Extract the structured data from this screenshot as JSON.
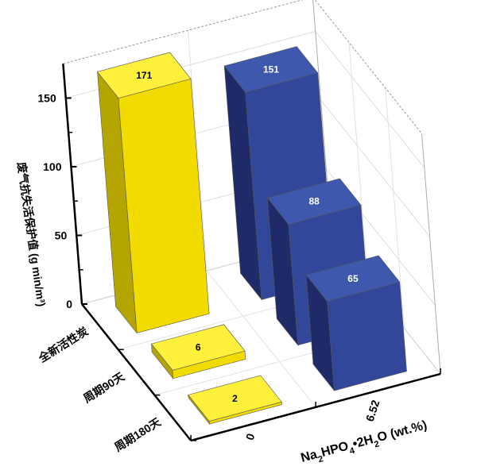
{
  "chart_data": {
    "type": "bar",
    "subtype": "3d-bar",
    "zlabel": "废气抗失活保护值 (g min/m³)",
    "xlabel_parts": {
      "main": "Na",
      "sub1": "2",
      "mid": "HPO",
      "sub2": "4",
      "tail": "•2H",
      "sub3": "2",
      "end": "O (wt.%)"
    },
    "x_categories": [
      "0",
      "6.52"
    ],
    "y_categories": [
      "全新活性炭",
      "周期90天",
      "周期180天"
    ],
    "z_ticks": [
      0,
      50,
      100,
      150
    ],
    "zlim": [
      0,
      175
    ],
    "grid": true,
    "series": [
      {
        "x": "0",
        "values": [
          171,
          6,
          2
        ],
        "color": "#f5e000"
      },
      {
        "x": "6.52",
        "values": [
          151,
          88,
          65
        ],
        "color": "#34489a"
      }
    ],
    "data_labels": [
      "171",
      "6",
      "2",
      "151",
      "88",
      "65"
    ]
  }
}
